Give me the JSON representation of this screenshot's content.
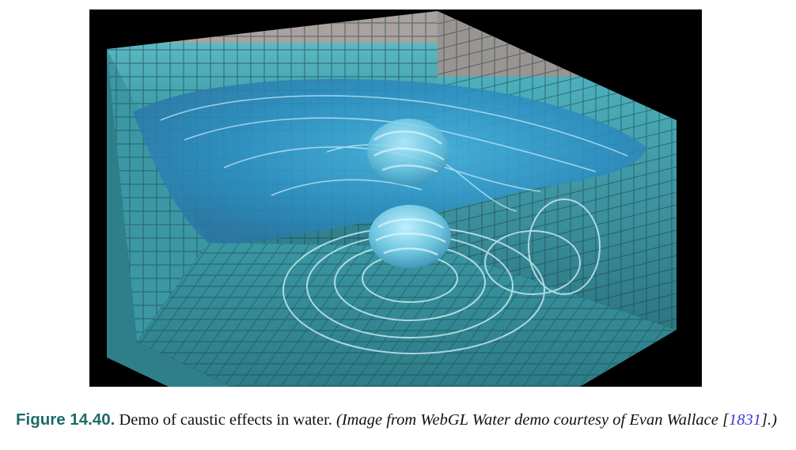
{
  "figure": {
    "label": "Figure 14.40.",
    "caption_text": "Demo of caustic effects in water.",
    "credit_prefix": "(Image from WebGL Water demo courtesy of Evan Wallace [",
    "citation": "1831",
    "credit_suffix": "].)"
  },
  "colors": {
    "label_color": "#1f6a6a",
    "citation_color": "#3a3ad6",
    "water": "#2e9fc8",
    "tile_wall": "#4aa9b0",
    "tile_top": "#b8b0ab"
  }
}
